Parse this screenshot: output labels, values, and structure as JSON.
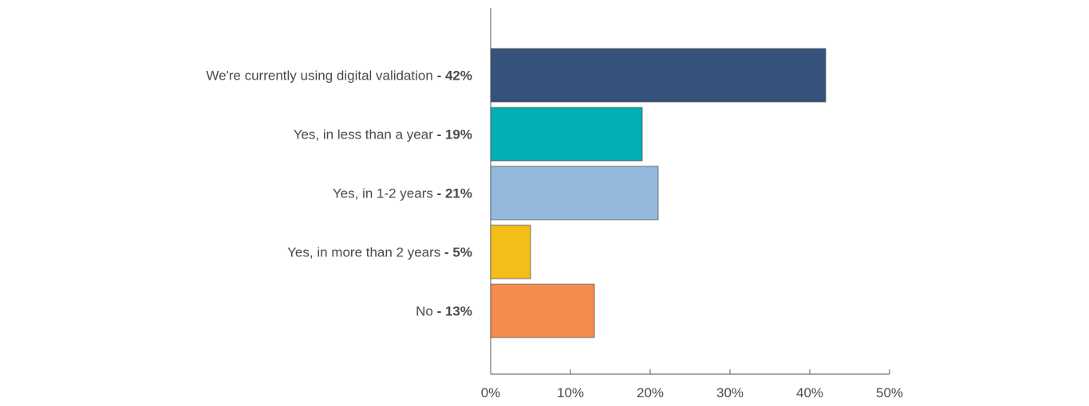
{
  "chart_data": {
    "type": "bar",
    "orientation": "horizontal",
    "title": "",
    "xlabel": "",
    "ylabel": "",
    "categories": [
      "We're currently using digital validation",
      "Yes, in less than a year",
      "Yes, in 1-2 years",
      "Yes, in more than 2 years",
      "No"
    ],
    "value_labels": [
      " - 42%",
      " - 19%",
      " - 21%",
      " - 5%",
      " - 13%"
    ],
    "values": [
      42,
      19,
      21,
      5,
      13
    ],
    "colors": [
      "#34527a",
      "#00b0b4",
      "#93b9dc",
      "#f5bd18",
      "#f68b50"
    ],
    "xlim": [
      0,
      50
    ],
    "xticks": [
      0,
      10,
      20,
      30,
      40,
      50
    ],
    "xtick_labels": [
      "0%",
      "10%",
      "20%",
      "30%",
      "40%",
      "50%"
    ],
    "grid": false,
    "legend": "none"
  }
}
